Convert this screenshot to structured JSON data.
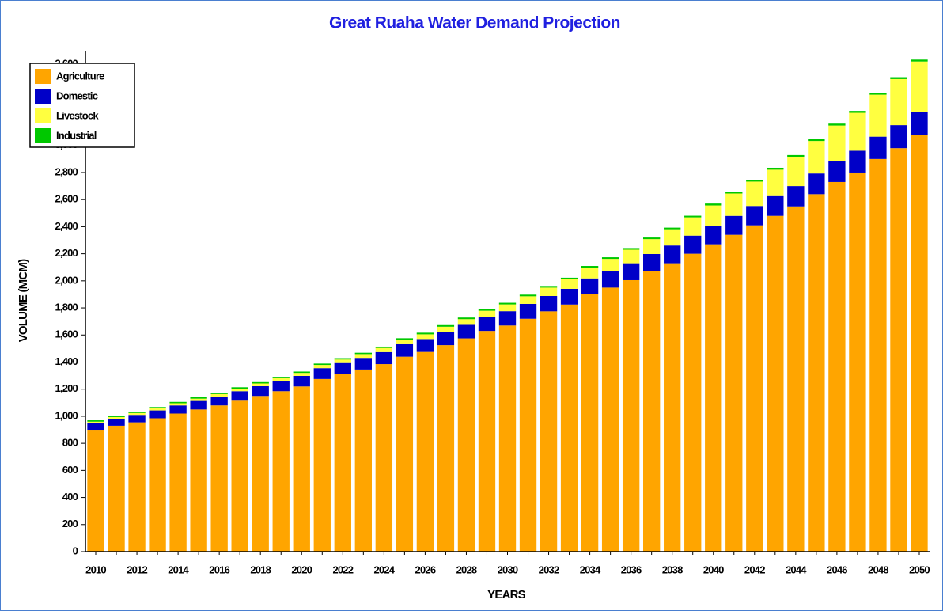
{
  "chart_data": {
    "type": "stacked_bar",
    "title": "Great Ruaha Water Demand Projection",
    "x_label": "YEARS",
    "y_label": "VOLUME (MCM)",
    "categories": [
      "2010",
      null,
      "2012",
      null,
      "2014",
      null,
      "2016",
      null,
      "2018",
      null,
      "2020",
      null,
      "2022",
      null,
      "2024",
      null,
      "2026",
      null,
      "2028",
      null,
      "2030",
      null,
      "2032",
      null,
      "2034",
      null,
      "2036",
      null,
      "2038",
      null,
      "2040",
      null,
      "2042",
      null,
      "2044",
      null,
      "2046",
      null,
      "2048",
      null,
      "2050"
    ],
    "series": [
      {
        "name": "Agriculture",
        "color": "#ffa500",
        "values": [
          900,
          930,
          955,
          985,
          1020,
          1050,
          1080,
          1115,
          1150,
          1185,
          1220,
          1275,
          1310,
          1345,
          1385,
          1440,
          1475,
          1525,
          1575,
          1630,
          1670,
          1720,
          1775,
          1825,
          1900,
          1950,
          2005,
          2070,
          2130,
          2200,
          2270,
          2340,
          2410,
          2480,
          2550,
          2640,
          2730,
          2800,
          2900,
          2980,
          3075
        ]
      },
      {
        "name": "Domestic",
        "color": "#0000c8",
        "values": [
          50,
          52,
          55,
          58,
          60,
          63,
          66,
          70,
          72,
          75,
          78,
          80,
          83,
          86,
          89,
          92,
          95,
          98,
          100,
          103,
          106,
          110,
          113,
          116,
          118,
          122,
          125,
          128,
          131,
          134,
          137,
          140,
          143,
          146,
          150,
          153,
          157,
          161,
          165,
          170,
          175
        ]
      },
      {
        "name": "Livestock",
        "color": "#ffff40",
        "values": [
          10,
          12,
          14,
          15,
          16,
          17,
          18,
          19,
          20,
          21,
          22,
          24,
          26,
          28,
          30,
          32,
          35,
          38,
          42,
          46,
          50,
          56,
          62,
          70,
          80,
          90,
          100,
          110,
          120,
          135,
          150,
          165,
          180,
          195,
          215,
          240,
          260,
          280,
          310,
          340,
          370
        ]
      },
      {
        "name": "Industrial",
        "color": "#00c800",
        "values": [
          10,
          10,
          10,
          10,
          10,
          10,
          10,
          10,
          10,
          10,
          10,
          10,
          10,
          10,
          10,
          12,
          12,
          12,
          12,
          12,
          12,
          12,
          12,
          12,
          12,
          12,
          12,
          12,
          12,
          12,
          14,
          14,
          14,
          14,
          14,
          14,
          14,
          14,
          14,
          14,
          14
        ]
      }
    ],
    "ylim": [
      0,
      3700
    ],
    "yticks": [
      0,
      200,
      400,
      600,
      800,
      {
        "value": 1000,
        "label": "1,000"
      },
      {
        "value": 1200,
        "label": "1,200"
      },
      {
        "value": 1400,
        "label": "1,400"
      },
      {
        "value": 1600,
        "label": "1,600"
      },
      {
        "value": 1800,
        "label": "1,800"
      },
      {
        "value": 2000,
        "label": "2,000"
      },
      {
        "value": 2200,
        "label": "2,200"
      },
      {
        "value": 2400,
        "label": "2,400"
      },
      {
        "value": 2600,
        "label": "2,600"
      },
      {
        "value": 2800,
        "label": "2,800"
      },
      {
        "value": 3000,
        "label": "3,000"
      },
      {
        "value": 3200,
        "label": "3,200"
      },
      {
        "value": 3400,
        "label": "3,400"
      },
      {
        "value": 3600,
        "label": "3,600"
      }
    ],
    "legend": "top-left"
  }
}
